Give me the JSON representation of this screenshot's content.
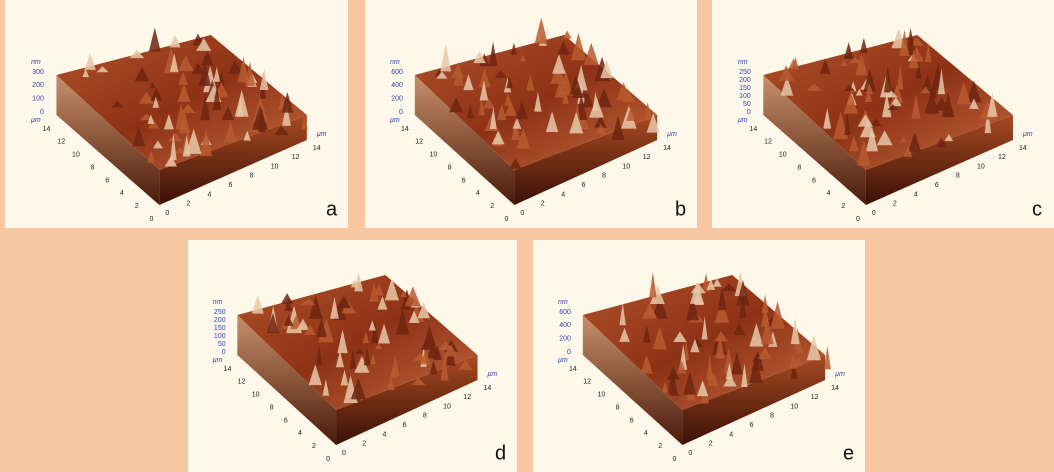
{
  "panels": [
    {
      "label": "a",
      "z_unit": "nm",
      "z_ticks": [
        300,
        200,
        100,
        0
      ],
      "xy_unit": "μm",
      "left_ticks": [
        14,
        12,
        10,
        8,
        6,
        4,
        2,
        0
      ],
      "right_ticks": [
        0,
        2,
        4,
        6,
        8,
        10,
        12,
        14
      ],
      "right_unit": "μm"
    },
    {
      "label": "b",
      "z_unit": "nm",
      "z_ticks": [
        600,
        400,
        200,
        0
      ],
      "xy_unit": "μm",
      "left_ticks": [
        14,
        12,
        10,
        8,
        6,
        4,
        2,
        0
      ],
      "right_ticks": [
        0,
        2,
        4,
        6,
        8,
        10,
        12,
        14
      ],
      "right_unit": "μm"
    },
    {
      "label": "c",
      "z_unit": "nm",
      "z_ticks": [
        250,
        200,
        150,
        100,
        50,
        0
      ],
      "xy_unit": "μm",
      "left_ticks": [
        14,
        12,
        10,
        8,
        6,
        4,
        2,
        0
      ],
      "right_ticks": [
        0,
        2,
        4,
        6,
        8,
        10,
        12,
        14
      ],
      "right_unit": "μm"
    },
    {
      "label": "d",
      "z_unit": "nm",
      "z_ticks": [
        250,
        200,
        150,
        100,
        50,
        0
      ],
      "xy_unit": "μm",
      "left_ticks": [
        14,
        12,
        10,
        8,
        6,
        4,
        2,
        0
      ],
      "right_ticks": [
        0,
        2,
        4,
        6,
        8,
        10,
        12,
        14
      ],
      "right_unit": "μm"
    },
    {
      "label": "e",
      "z_unit": "nm",
      "z_ticks": [
        600,
        400,
        200,
        0
      ],
      "xy_unit": "μm",
      "left_ticks": [
        14,
        12,
        10,
        8,
        6,
        4,
        2,
        0
      ],
      "right_ticks": [
        0,
        2,
        4,
        6,
        8,
        10,
        12,
        14
      ],
      "right_unit": "μm"
    }
  ]
}
